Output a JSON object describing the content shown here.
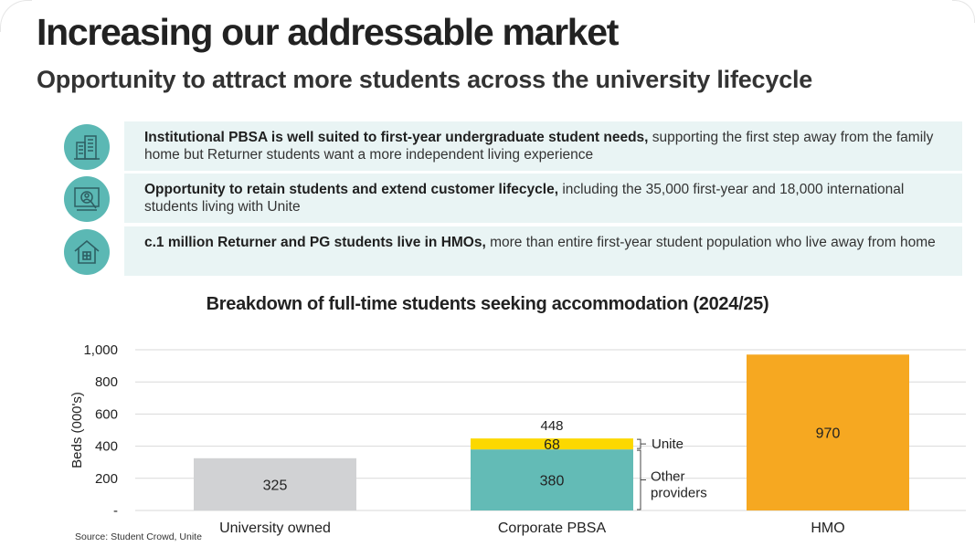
{
  "header": {
    "title": "Increasing our addressable market",
    "subtitle": "Opportunity to attract more students across the university lifecycle"
  },
  "points": [
    {
      "icon": "buildings-icon",
      "bold": "Institutional PBSA is well suited to first-year undergraduate student needs,",
      "text": " supporting the first step away from the family home but Returner students want a more independent living experience"
    },
    {
      "icon": "magnifier-people-icon",
      "bold": "Opportunity to retain students and extend customer lifecycle,",
      "text": " including the 35,000 first-year and 18,000 international students living with Unite"
    },
    {
      "icon": "house-icon",
      "bold": "c.1 million Returner and PG students live in HMOs,",
      "text": " more than entire first-year student population who live away from home"
    }
  ],
  "chart_data": {
    "type": "bar",
    "stacked": true,
    "title": "Breakdown of full-time students seeking accommodation (2024/25)",
    "ylabel": "Beds (000's)",
    "xlabel": "",
    "ylim": [
      0,
      1000
    ],
    "yticks": [
      0,
      200,
      400,
      600,
      800,
      1000
    ],
    "ytick_labels": [
      "-",
      "200",
      "400",
      "600",
      "800",
      "1,000"
    ],
    "grid": true,
    "categories": [
      "University owned",
      "Corporate PBSA",
      "HMO"
    ],
    "segments": [
      {
        "category": "University owned",
        "value": 325,
        "label": "325",
        "color": "#d1d2d4"
      },
      {
        "category": "Corporate PBSA",
        "value": 380,
        "label": "380",
        "color": "#63bbb6",
        "annotation": "Other providers"
      },
      {
        "category": "Corporate PBSA",
        "value": 68,
        "label": "68",
        "color": "#fcd800",
        "annotation": "Unite"
      },
      {
        "category": "HMO",
        "value": 970,
        "label": "970",
        "color": "#f6a821"
      }
    ],
    "totals": [
      {
        "category": "Corporate PBSA",
        "value": 448,
        "label": "448"
      }
    ],
    "annotation_lines": {
      "unite": "Unite",
      "other_1": "Other",
      "other_2": "providers"
    }
  },
  "source": "Source: Student Crowd, Unite",
  "colors": {
    "accent": "#5bb8b4",
    "box_bg": "#e9f4f4",
    "gridline": "#d9d9d9"
  }
}
